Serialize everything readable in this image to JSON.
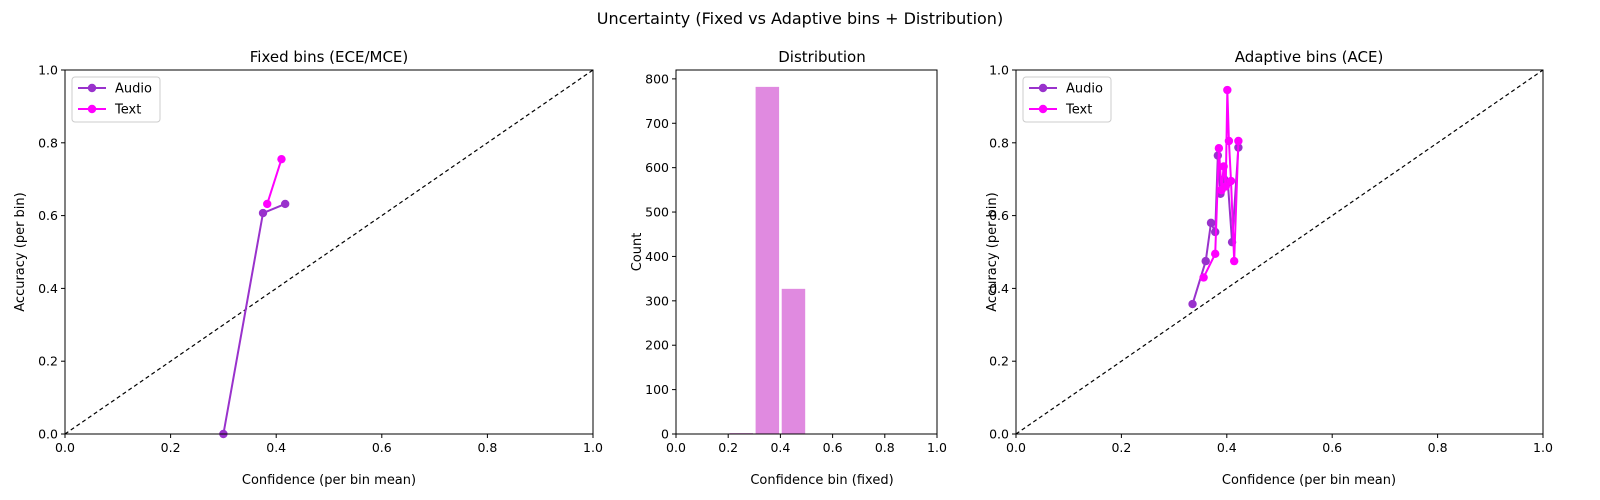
{
  "figure": {
    "suptitle": "Uncertainty (Fixed vs Adaptive bins + Distribution)"
  },
  "chart_data": [
    {
      "type": "line",
      "title": "Fixed bins (ECE/MCE)",
      "xlabel": "Confidence (per bin mean)",
      "ylabel": "Accuracy (per bin)",
      "xlim": [
        0,
        1
      ],
      "ylim": [
        0,
        1
      ],
      "xticks": [
        "0.0",
        "0.2",
        "0.4",
        "0.6",
        "0.8",
        "1.0"
      ],
      "yticks": [
        "0.0",
        "0.2",
        "0.4",
        "0.6",
        "0.8",
        "1.0"
      ],
      "diagonal": true,
      "legend": "top-left",
      "series": [
        {
          "name": "Audio",
          "color": "#9932CC",
          "x": [
            0.3,
            0.375,
            0.417
          ],
          "y": [
            0.0,
            0.607,
            0.632
          ]
        },
        {
          "name": "Text",
          "color": "#FF00FF",
          "x": [
            0.383,
            0.41
          ],
          "y": [
            0.632,
            0.755
          ]
        }
      ]
    },
    {
      "type": "bar",
      "title": "Distribution",
      "xlabel": "Confidence bin (fixed)",
      "ylabel": "Count",
      "xlim": [
        0,
        1
      ],
      "ylim": [
        0,
        820
      ],
      "xticks": [
        "0.0",
        "0.2",
        "0.4",
        "0.6",
        "0.8",
        "1.0"
      ],
      "yticks": [
        "0",
        "100",
        "200",
        "300",
        "400",
        "500",
        "600",
        "700",
        "800"
      ],
      "color": "#E08AE0",
      "categories": [
        "0.2-0.3",
        "0.3-0.4",
        "0.4-0.5"
      ],
      "values": [
        2,
        782,
        327
      ]
    },
    {
      "type": "line",
      "title": "Adaptive bins (ACE)",
      "xlabel": "Confidence (per bin mean)",
      "ylabel": "Accuracy (per bin)",
      "xlim": [
        0,
        1
      ],
      "ylim": [
        0,
        1
      ],
      "xticks": [
        "0.0",
        "0.2",
        "0.4",
        "0.6",
        "0.8",
        "1.0"
      ],
      "yticks": [
        "0.0",
        "0.2",
        "0.4",
        "0.6",
        "0.8",
        "1.0"
      ],
      "diagonal": true,
      "legend": "top-left",
      "series": [
        {
          "name": "Audio",
          "color": "#9932CC",
          "x": [
            0.335,
            0.36,
            0.37,
            0.378,
            0.383,
            0.388,
            0.395,
            0.402,
            0.41,
            0.422
          ],
          "y": [
            0.357,
            0.475,
            0.58,
            0.555,
            0.765,
            0.66,
            0.7,
            0.69,
            0.527,
            0.787
          ]
        },
        {
          "name": "Text",
          "color": "#FF00FF",
          "x": [
            0.356,
            0.378,
            0.385,
            0.39,
            0.394,
            0.398,
            0.401,
            0.404,
            0.408,
            0.414,
            0.422
          ],
          "y": [
            0.43,
            0.495,
            0.785,
            0.67,
            0.735,
            0.68,
            0.945,
            0.805,
            0.695,
            0.475,
            0.805
          ]
        }
      ]
    }
  ]
}
